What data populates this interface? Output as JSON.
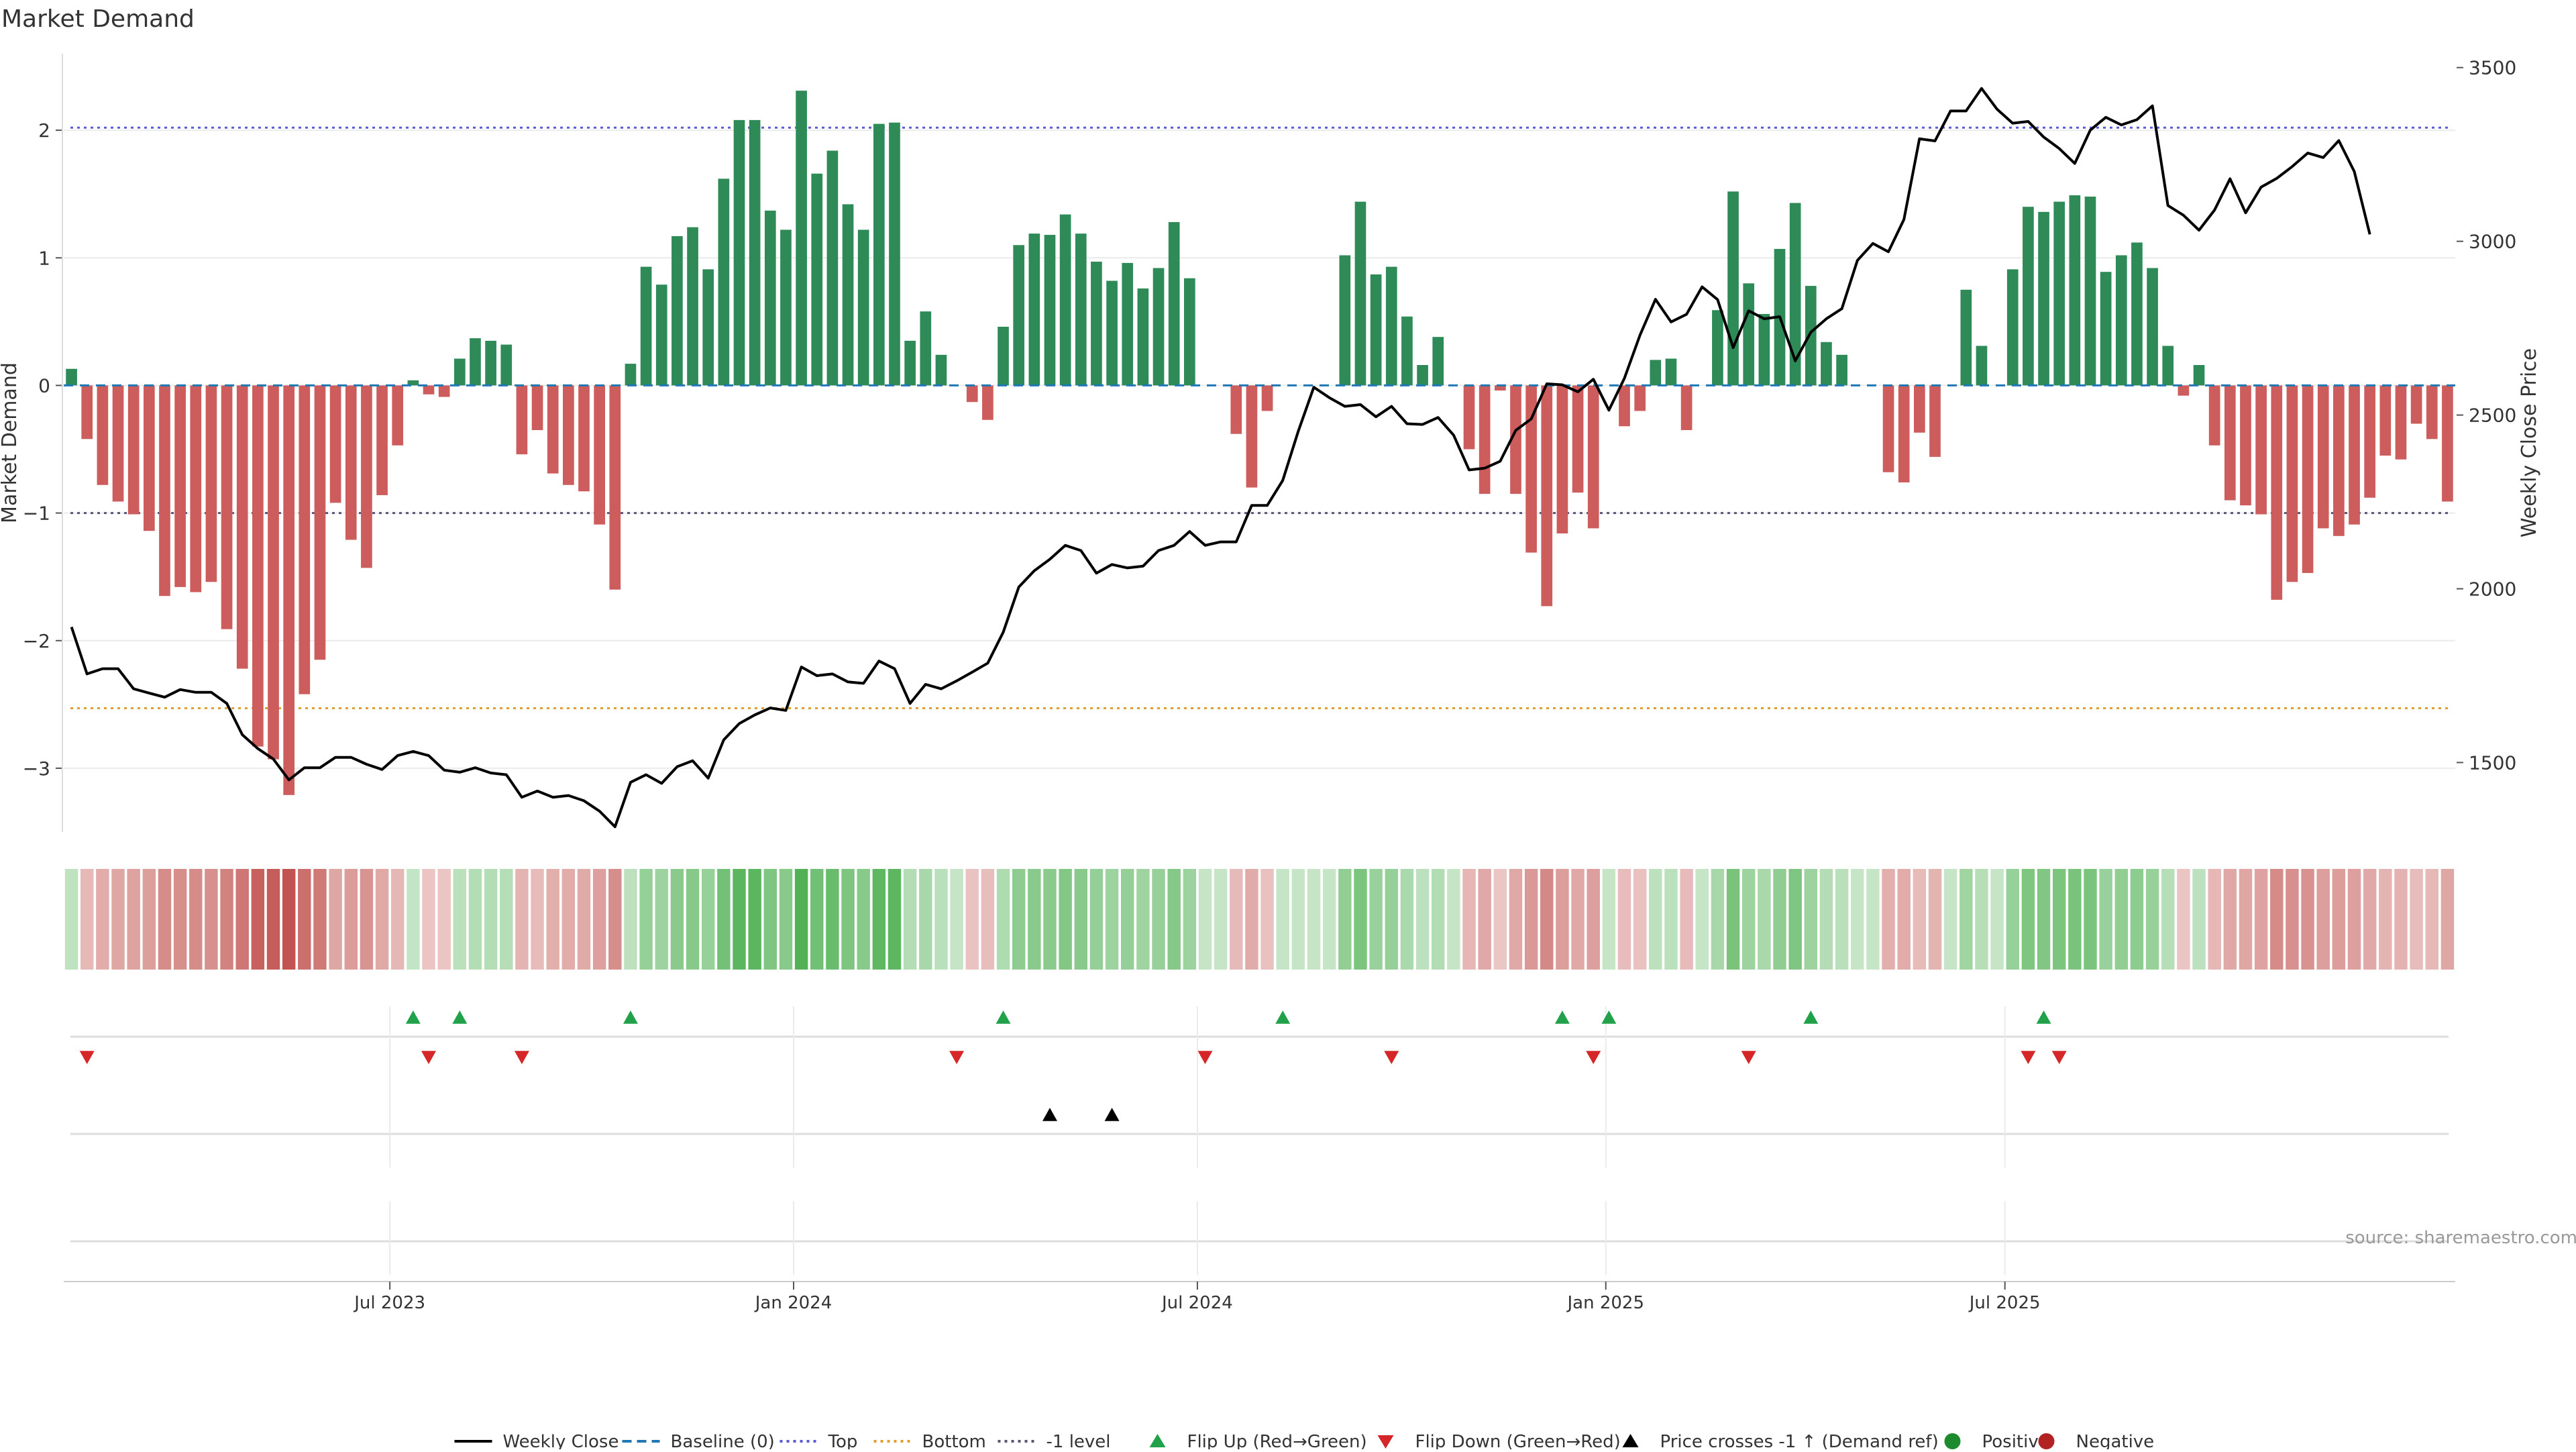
{
  "title": "Market Demand",
  "source": "source: sharemaestro.com",
  "colors": {
    "positive": "#2e8b57",
    "negative": "#cd5c5c",
    "price_line": "#000000",
    "baseline": "#1f77b4",
    "top_level": "#5b5bd6",
    "bottom_level": "#e0a030",
    "minus1_level": "#555577",
    "flip_up": "#21a14a",
    "flip_down": "#d62728",
    "cross": "#000000",
    "grid": "#ebebeb",
    "heat_pos": "#4caf50",
    "heat_neg": "#c0504d"
  },
  "legend": [
    {
      "label": "Weekly Close",
      "icon": "solid-line",
      "color": "#000000"
    },
    {
      "label": "Baseline (0)",
      "icon": "dashed-line",
      "color": "#1f77b4"
    },
    {
      "label": "Top",
      "icon": "dotted-line",
      "color": "#5b5bd6"
    },
    {
      "label": "Bottom",
      "icon": "dotted-line",
      "color": "#e0a030"
    },
    {
      "label": "-1 level",
      "icon": "dotted-line",
      "color": "#555577"
    },
    {
      "label": "Flip Up (Red→Green)",
      "icon": "triangle-up",
      "color": "#21a14a"
    },
    {
      "label": "Flip Down (Green→Red)",
      "icon": "triangle-down",
      "color": "#d62728"
    },
    {
      "label": "Price crosses -1 ↑ (Demand ref)",
      "icon": "triangle-up",
      "color": "#000000"
    },
    {
      "label": "Positive",
      "icon": "circle",
      "color": "#1e8a2e"
    },
    {
      "label": "Negative",
      "icon": "circle",
      "color": "#b22222"
    }
  ],
  "chart_data": {
    "type": "bar",
    "ylabel": "Market Demand",
    "y2label": "Weekly Close Price",
    "ylim": [
      -3.5,
      2.6
    ],
    "y2lim": [
      1300,
      3540
    ],
    "yticks": [
      -3,
      -2,
      -1,
      0,
      1,
      2
    ],
    "y2ticks": [
      1500,
      2000,
      2500,
      3000,
      3500
    ],
    "reference_lines": {
      "baseline": 0,
      "top": 2.02,
      "bottom": -2.53,
      "minus_one": -1
    },
    "date_ticks": [
      "Jul 2023",
      "Jan 2024",
      "Jul 2024",
      "Jan 2025",
      "Jul 2025"
    ],
    "date_tick_index": [
      20.5,
      46.5,
      72.5,
      98.8,
      124.5
    ],
    "series": [
      {
        "name": "Market Demand",
        "values": [
          0.13,
          -0.42,
          -0.78,
          -0.91,
          -1.01,
          -1.14,
          -1.65,
          -1.58,
          -1.62,
          -1.54,
          -1.91,
          -2.22,
          -2.83,
          -2.93,
          -3.21,
          -2.42,
          -2.15,
          -0.92,
          -1.21,
          -1.43,
          -0.86,
          -0.47,
          0.04,
          -0.07,
          -0.09,
          0.21,
          0.37,
          0.35,
          0.32,
          -0.54,
          -0.35,
          -0.69,
          -0.78,
          -0.83,
          -1.09,
          -1.6,
          0.17,
          0.93,
          0.79,
          1.17,
          1.24,
          0.91,
          1.62,
          2.08,
          2.08,
          1.37,
          1.22,
          2.31,
          1.66,
          1.84,
          1.42,
          1.22,
          2.05,
          2.06,
          0.35,
          0.58,
          0.24,
          0,
          -0.13,
          -0.27,
          0.46,
          1.1,
          1.19,
          1.18,
          1.34,
          1.19,
          0.97,
          0.82,
          0.96,
          0.76,
          0.92,
          1.28,
          0.84,
          0,
          0,
          -0.38,
          -0.8,
          -0.2,
          0,
          0,
          0,
          0,
          1.02,
          1.44,
          0.87,
          0.93,
          0.54,
          0.16,
          0.38,
          0,
          -0.5,
          -0.85,
          -0.04,
          -0.85,
          -1.31,
          -1.73,
          -1.16,
          -0.84,
          -1.12,
          0,
          -0.32,
          -0.2,
          0.2,
          0.21,
          -0.35,
          0,
          0.59,
          1.52,
          0.8,
          0.56,
          1.07,
          1.43,
          0.78,
          0.34,
          0.24,
          0,
          0,
          -0.68,
          -0.76,
          -0.37,
          -0.56,
          0,
          0.75,
          0.31,
          0,
          0.91,
          1.4,
          1.36,
          1.44,
          1.49,
          1.48,
          0.89,
          1.02,
          1.12,
          0.92,
          0.31,
          -0.08,
          0.16,
          -0.47,
          -0.9,
          -0.94,
          -1.01,
          -1.68,
          -1.54,
          -1.47,
          -1.12,
          -1.18,
          -1.09,
          -0.88,
          -0.55,
          -0.58,
          -0.3,
          -0.42,
          -0.91
        ]
      },
      {
        "name": "Weekly Close",
        "values": [
          1890,
          1755,
          1770,
          1770,
          1712,
          1700,
          1688,
          1710,
          1702,
          1702,
          1670,
          1580,
          1540,
          1510,
          1450,
          1485,
          1485,
          1515,
          1515,
          1495,
          1480,
          1520,
          1532,
          1520,
          1478,
          1472,
          1485,
          1470,
          1465,
          1400,
          1418,
          1400,
          1405,
          1390,
          1360,
          1315,
          1443,
          1465,
          1440,
          1488,
          1505,
          1455,
          1565,
          1612,
          1637,
          1657,
          1650,
          1775,
          1750,
          1755,
          1732,
          1728,
          1792,
          1770,
          1670,
          1725,
          1712,
          1735,
          1760,
          1786,
          1875,
          2005,
          2052,
          2085,
          2125,
          2110,
          2045,
          2070,
          2060,
          2065,
          2110,
          2125,
          2165,
          2125,
          2135,
          2135,
          2240,
          2240,
          2312,
          2454,
          2580,
          2550,
          2525,
          2530,
          2495,
          2525,
          2475,
          2473,
          2493,
          2442,
          2342,
          2347,
          2367,
          2456,
          2489,
          2590,
          2587,
          2567,
          2603,
          2514,
          2606,
          2730,
          2833,
          2768,
          2790,
          2869,
          2832,
          2694,
          2800,
          2777,
          2783,
          2656,
          2738,
          2777,
          2806,
          2945,
          2994,
          2970,
          3063,
          3295,
          3289,
          3375,
          3375,
          3440,
          3380,
          3340,
          3345,
          3300,
          3267,
          3224,
          3320,
          3357,
          3335,
          3350,
          3390,
          3103,
          3075,
          3032,
          3090,
          3180,
          3082,
          3156,
          3181,
          3215,
          3254,
          3241,
          3290,
          3201,
          3020
        ]
      }
    ],
    "flip_up_index": [
      22,
      25,
      36,
      60,
      78,
      96,
      99,
      112,
      127
    ],
    "flip_down_index": [
      1,
      23,
      29,
      57,
      73,
      85,
      98,
      108,
      126,
      128
    ],
    "price_cross_index": [
      63,
      67
    ],
    "x_dates": {
      "start": "2023-03",
      "end": "2025-10"
    }
  }
}
